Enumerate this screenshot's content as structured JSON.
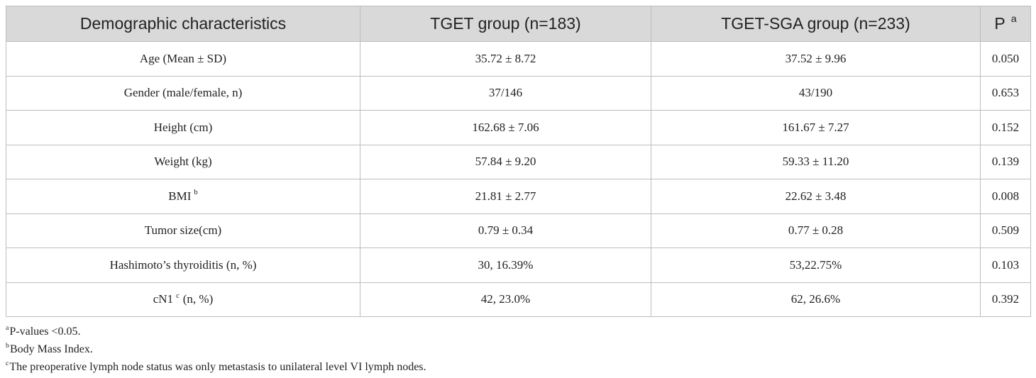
{
  "table": {
    "header": [
      {
        "text": "Demographic characteristics"
      },
      {
        "text": "TGET group (n=183)"
      },
      {
        "text": "TGET-SGA group (n=233)"
      },
      {
        "text": "P",
        "sup": "a"
      }
    ],
    "rows": [
      {
        "label": {
          "text": "Age (Mean ± SD)"
        },
        "cells": [
          "35.72 ± 8.72",
          "37.52 ± 9.96",
          "0.050"
        ]
      },
      {
        "label": {
          "text": "Gender (male/female, n)"
        },
        "cells": [
          "37/146",
          "43/190",
          "0.653"
        ]
      },
      {
        "label": {
          "text": "Height (cm)"
        },
        "cells": [
          "162.68 ± 7.06",
          "161.67 ± 7.27",
          "0.152"
        ]
      },
      {
        "label": {
          "text": "Weight (kg)"
        },
        "cells": [
          "57.84 ± 9.20",
          "59.33 ± 11.20",
          "0.139"
        ]
      },
      {
        "label": {
          "text": "BMI",
          "sup": "b"
        },
        "cells": [
          "21.81 ± 2.77",
          "22.62 ± 3.48",
          "0.008"
        ]
      },
      {
        "label": {
          "text": "Tumor size(cm)"
        },
        "cells": [
          "0.79 ± 0.34",
          "0.77 ± 0.28",
          "0.509"
        ]
      },
      {
        "label": {
          "text": "Hashimoto’s thyroiditis (n, %)"
        },
        "cells": [
          "30, 16.39%",
          "53,22.75%",
          "0.103"
        ]
      },
      {
        "label": {
          "text": "cN1",
          "sup": "c",
          "after": "(n, %)"
        },
        "cells": [
          "42, 23.0%",
          "62, 26.6%",
          "0.392"
        ]
      }
    ]
  },
  "footnotes": [
    {
      "mark": "a",
      "text": "P-values <0.05."
    },
    {
      "mark": "b",
      "text": "Body Mass Index."
    },
    {
      "mark": "c",
      "text": "The preoperative lymph node status was only metastasis to unilateral level VI lymph nodes."
    }
  ]
}
